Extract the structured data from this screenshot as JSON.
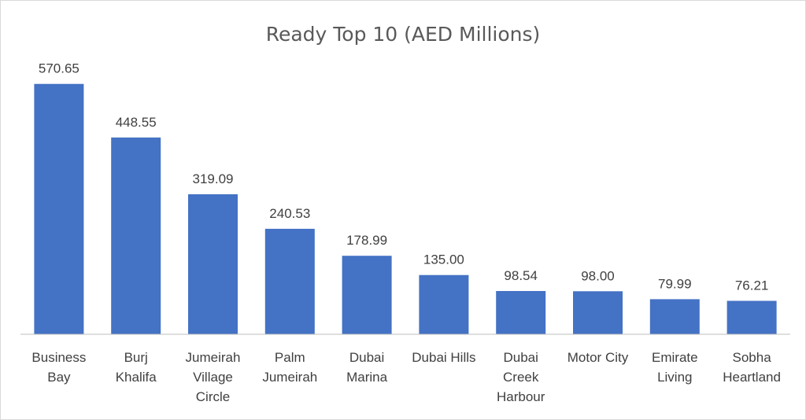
{
  "chart_data": {
    "type": "bar",
    "title": "Ready Top 10 (AED Millions)",
    "xlabel": "",
    "ylabel": "",
    "categories": [
      [
        "Business",
        "Bay"
      ],
      [
        "Burj",
        "Khalifa"
      ],
      [
        "Jumeirah",
        "Village",
        "Circle"
      ],
      [
        "Palm",
        "Jumeirah"
      ],
      [
        "Dubai",
        "Marina"
      ],
      [
        "Dubai Hills"
      ],
      [
        "Dubai",
        "Creek",
        "Harbour"
      ],
      [
        "Motor City"
      ],
      [
        "Emirate",
        "Living"
      ],
      [
        "Sobha",
        "Heartland"
      ]
    ],
    "values": [
      570.65,
      448.55,
      319.09,
      240.53,
      178.99,
      135.0,
      98.54,
      98.0,
      79.99,
      76.21
    ],
    "value_labels": [
      "570.65",
      "448.55",
      "319.09",
      "240.53",
      "178.99",
      "135.00",
      "98.54",
      "98.00",
      "79.99",
      "76.21"
    ],
    "ylim": [
      0,
      600
    ],
    "grid": false,
    "legend": "none",
    "bar_color": "#4472c4",
    "axis_color": "#bfbfbf"
  }
}
